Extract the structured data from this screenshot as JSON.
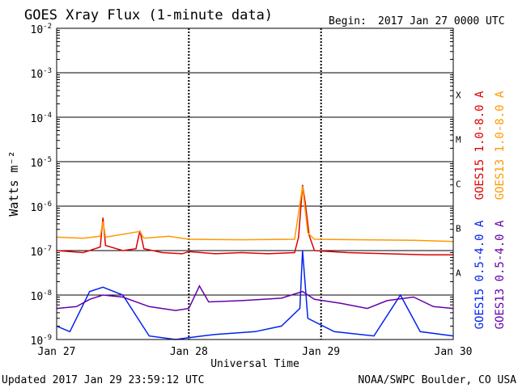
{
  "header": {
    "title": "GOES Xray Flux (1-minute data)",
    "begin_label": "Begin:",
    "begin_value": "2017 Jan 27 0000 UTC"
  },
  "footer": {
    "updated": "Updated 2017 Jan 29 23:59:12 UTC",
    "credit": "NOAA/SWPC Boulder, CO USA"
  },
  "chart_data": {
    "type": "line",
    "title": "GOES Xray Flux (1-minute data)",
    "xlabel": "Universal Time",
    "ylabel": "Watts m⁻²",
    "y_scale": "log",
    "ylim": [
      1e-09,
      0.01
    ],
    "xlim_days": [
      0,
      3
    ],
    "x_tick_labels": [
      "Jan 27",
      "Jan 28",
      "Jan 29",
      "Jan 30"
    ],
    "y_tick_labels": [
      {
        "base": "10",
        "exp": "-2",
        "value": 0.01
      },
      {
        "base": "10",
        "exp": "-3",
        "value": 0.001
      },
      {
        "base": "10",
        "exp": "-4",
        "value": 0.0001
      },
      {
        "base": "10",
        "exp": "-5",
        "value": 1e-05
      },
      {
        "base": "10",
        "exp": "-6",
        "value": 1e-06
      },
      {
        "base": "10",
        "exp": "-7",
        "value": 1e-07
      },
      {
        "base": "10",
        "exp": "-8",
        "value": 1e-08
      },
      {
        "base": "10",
        "exp": "-9",
        "value": 1e-09
      }
    ],
    "flare_classes": [
      {
        "label": "X",
        "value": 0.000316
      },
      {
        "label": "M",
        "value": 3.16e-05
      },
      {
        "label": "C",
        "value": 3.16e-06
      },
      {
        "label": "B",
        "value": 3.16e-07
      },
      {
        "label": "A",
        "value": 3.16e-08
      }
    ],
    "grid": true,
    "legend_placement": "right",
    "series": [
      {
        "name": "GOES15 1.0-8.0 A",
        "color": "#dd0000",
        "points": [
          [
            0,
            1e-07
          ],
          [
            0.1,
            9.5e-08
          ],
          [
            0.2,
            9e-08
          ],
          [
            0.33,
            1.2e-07
          ],
          [
            0.35,
            5.5e-07
          ],
          [
            0.37,
            1.3e-07
          ],
          [
            0.5,
            1e-07
          ],
          [
            0.6,
            1.1e-07
          ],
          [
            0.63,
            2.8e-07
          ],
          [
            0.66,
            1.1e-07
          ],
          [
            0.8,
            9e-08
          ],
          [
            0.95,
            8.5e-08
          ],
          [
            1.0,
            9.5e-08
          ],
          [
            1.2,
            8.5e-08
          ],
          [
            1.4,
            9e-08
          ],
          [
            1.6,
            8.5e-08
          ],
          [
            1.8,
            9e-08
          ],
          [
            1.83,
            2e-07
          ],
          [
            1.86,
            3e-06
          ],
          [
            1.88,
            1.2e-06
          ],
          [
            1.91,
            2.2e-07
          ],
          [
            1.95,
            1e-07
          ],
          [
            2.2,
            9e-08
          ],
          [
            2.5,
            8.5e-08
          ],
          [
            2.8,
            8e-08
          ],
          [
            3.0,
            8e-08
          ]
        ]
      },
      {
        "name": "GOES13 1.0-8.0 A",
        "color": "#ff9900",
        "points": [
          [
            0,
            2e-07
          ],
          [
            0.2,
            1.9e-07
          ],
          [
            0.33,
            2.1e-07
          ],
          [
            0.35,
            4.5e-07
          ],
          [
            0.37,
            2e-07
          ],
          [
            0.63,
            2.7e-07
          ],
          [
            0.66,
            1.9e-07
          ],
          [
            0.85,
            2.1e-07
          ],
          [
            1.0,
            1.8e-07
          ],
          [
            1.4,
            1.75e-07
          ],
          [
            1.8,
            1.8e-07
          ],
          [
            1.86,
            2.8e-06
          ],
          [
            1.9,
            2.5e-07
          ],
          [
            1.95,
            1.8e-07
          ],
          [
            2.3,
            1.75e-07
          ],
          [
            2.7,
            1.7e-07
          ],
          [
            3.0,
            1.6e-07
          ]
        ]
      },
      {
        "name": "GOES15 0.5-4.0 A",
        "color": "#0022ee",
        "points": [
          [
            0,
            2e-09
          ],
          [
            0.1,
            1.5e-09
          ],
          [
            0.25,
            1.2e-08
          ],
          [
            0.35,
            1.5e-08
          ],
          [
            0.5,
            1e-08
          ],
          [
            0.7,
            1.2e-09
          ],
          [
            0.9,
            1e-09
          ],
          [
            1.0,
            1.1e-09
          ],
          [
            1.2,
            1.3e-09
          ],
          [
            1.5,
            1.5e-09
          ],
          [
            1.7,
            2e-09
          ],
          [
            1.84,
            5e-09
          ],
          [
            1.86,
            1e-07
          ],
          [
            1.9,
            3e-09
          ],
          [
            2.1,
            1.5e-09
          ],
          [
            2.4,
            1.2e-09
          ],
          [
            2.6,
            1e-08
          ],
          [
            2.75,
            1.5e-09
          ],
          [
            3.0,
            1.2e-09
          ]
        ]
      },
      {
        "name": "GOES13 0.5-4.0 A",
        "color": "#6600aa",
        "points": [
          [
            0,
            5e-09
          ],
          [
            0.15,
            5.5e-09
          ],
          [
            0.25,
            8e-09
          ],
          [
            0.35,
            1e-08
          ],
          [
            0.5,
            9e-09
          ],
          [
            0.7,
            5.5e-09
          ],
          [
            0.9,
            4.5e-09
          ],
          [
            1.0,
            5e-09
          ],
          [
            1.08,
            1.6e-08
          ],
          [
            1.15,
            7e-09
          ],
          [
            1.4,
            7.5e-09
          ],
          [
            1.7,
            8.5e-09
          ],
          [
            1.86,
            1.2e-08
          ],
          [
            1.95,
            8e-09
          ],
          [
            2.15,
            6.5e-09
          ],
          [
            2.35,
            5e-09
          ],
          [
            2.5,
            7.5e-09
          ],
          [
            2.7,
            9e-09
          ],
          [
            2.85,
            5.5e-09
          ],
          [
            3.0,
            5e-09
          ]
        ]
      }
    ]
  }
}
